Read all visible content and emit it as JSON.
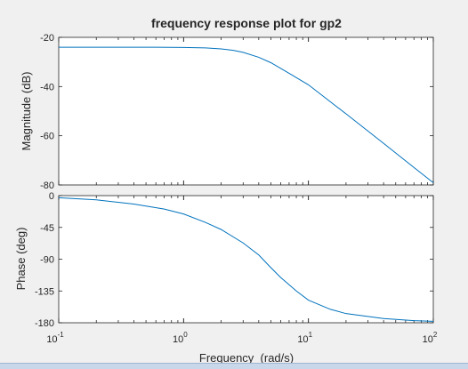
{
  "window": {
    "background": "#f0f0f0",
    "accent": "#0072bd"
  },
  "chart_data": [
    {
      "type": "line",
      "title": "frequency response plot for gp2",
      "xlabel": "",
      "ylabel": "Magnitude (dB)",
      "xscale": "log",
      "xlim": [
        0.1,
        100
      ],
      "ylim": [
        -80,
        -20
      ],
      "yticks": [
        "-20",
        "-40",
        "-60",
        "-80"
      ],
      "grid": false,
      "series": [
        {
          "color": "#0072bd",
          "x": [
            0.1,
            0.3,
            0.6,
            1,
            1.5,
            2,
            2.5,
            3,
            4,
            5,
            7,
            10,
            20,
            40,
            70,
            100
          ],
          "y": [
            -24.0,
            -24.0,
            -24.0,
            -24.1,
            -24.3,
            -24.7,
            -25.3,
            -26.1,
            -28.1,
            -30.3,
            -34.6,
            -39.3,
            -51.1,
            -63.1,
            -72.9,
            -79.1
          ]
        }
      ]
    },
    {
      "type": "line",
      "title": "",
      "xlabel": "Frequency  (rad/s)",
      "ylabel": "Phase (deg)",
      "xscale": "log",
      "xlim": [
        0.1,
        100
      ],
      "ylim": [
        -180,
        0
      ],
      "yticks": [
        "0",
        "-45",
        "-90",
        "-135",
        "-180"
      ],
      "xticks": [
        {
          "base": "10",
          "exp": "-1"
        },
        {
          "base": "10",
          "exp": "0"
        },
        {
          "base": "10",
          "exp": "1"
        },
        {
          "base": "10",
          "exp": "2"
        }
      ],
      "grid": false,
      "series": [
        {
          "color": "#0072bd",
          "x": [
            0.1,
            0.2,
            0.4,
            0.7,
            1,
            1.5,
            2,
            3,
            4,
            5,
            6,
            8,
            10,
            15,
            20,
            40,
            70,
            100
          ],
          "y": [
            -3,
            -6,
            -12,
            -19,
            -26,
            -38,
            -48,
            -67,
            -84,
            -102,
            -116,
            -135,
            -148,
            -161,
            -167,
            -174,
            -177,
            -178
          ]
        }
      ]
    }
  ]
}
